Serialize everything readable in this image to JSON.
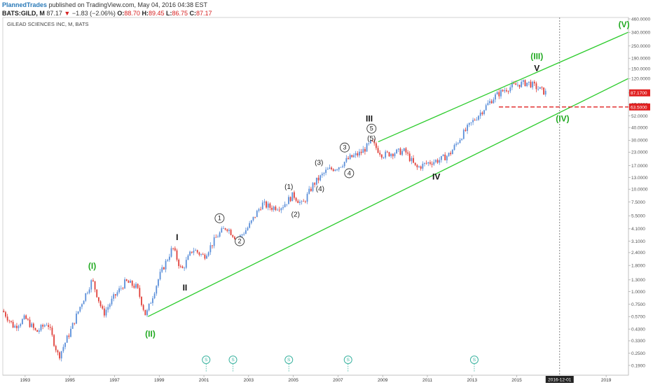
{
  "header": {
    "author": "PlannedTrades",
    "published": "published on TradingView.com, May 04, 2016 04:38 EST",
    "symbol": "BATS:GILD, M",
    "last": "87.17",
    "change": "−1.83 (−2.06%)",
    "o_label": "O:",
    "o_value": "88.70",
    "h_label": "H:",
    "h_value": "89.45",
    "l_label": "L:",
    "l_value": "86.75",
    "c_label": "C:",
    "c_value": "87.17"
  },
  "chart_data": {
    "type": "candlestick",
    "title": "GILEAD SCIENCES INC, M, BATS",
    "y_scale": "log",
    "ylim": [
      0.17,
      460
    ],
    "xlim": [
      1992.0,
      2020.0
    ],
    "y_ticks": [
      "460.0000",
      "340.0000",
      "250.0000",
      "190.0000",
      "150.0000",
      "120.0000",
      "87.0000",
      "67.0000",
      "52.0000",
      "40.0000",
      "30.0000",
      "23.0000",
      "17.0000",
      "13.0000",
      "10.0000",
      "7.5000",
      "5.5000",
      "4.1000",
      "3.1000",
      "2.4000",
      "1.8000",
      "1.3000",
      "1.0000",
      "0.7500",
      "0.5700",
      "0.4300",
      "0.3300",
      "0.2500",
      "0.1900"
    ],
    "x_ticks": [
      "1993",
      "1995",
      "1997",
      "1999",
      "2001",
      "2003",
      "2005",
      "2007",
      "2009",
      "2011",
      "2013",
      "2015",
      "2019"
    ],
    "price_path": [
      [
        1992.0,
        0.65
      ],
      [
        1992.5,
        0.45
      ],
      [
        1993.0,
        0.55
      ],
      [
        1993.5,
        0.4
      ],
      [
        1994.0,
        0.5
      ],
      [
        1994.5,
        0.23
      ],
      [
        1995.0,
        0.4
      ],
      [
        1995.5,
        0.75
      ],
      [
        1996.0,
        1.3
      ],
      [
        1996.5,
        0.6
      ],
      [
        1997.0,
        0.9
      ],
      [
        1997.5,
        1.25
      ],
      [
        1998.0,
        1.1
      ],
      [
        1998.4,
        0.58
      ],
      [
        1999.0,
        1.4
      ],
      [
        1999.6,
        2.7
      ],
      [
        2000.0,
        1.6
      ],
      [
        2000.5,
        2.6
      ],
      [
        2001.0,
        2.2
      ],
      [
        2001.6,
        3.5
      ],
      [
        2002.0,
        4.3
      ],
      [
        2002.5,
        3.2
      ],
      [
        2003.0,
        4.3
      ],
      [
        2003.6,
        7.2
      ],
      [
        2004.0,
        6.6
      ],
      [
        2004.5,
        6.8
      ],
      [
        2005.0,
        8.8
      ],
      [
        2005.4,
        7.0
      ],
      [
        2005.9,
        11.2
      ],
      [
        2006.5,
        15.2
      ],
      [
        2007.0,
        16.5
      ],
      [
        2007.5,
        20.0
      ],
      [
        2008.0,
        22.5
      ],
      [
        2008.5,
        28.5
      ],
      [
        2009.0,
        21.5
      ],
      [
        2009.5,
        22.8
      ],
      [
        2010.0,
        23.5
      ],
      [
        2010.5,
        16.0
      ],
      [
        2011.0,
        18.0
      ],
      [
        2011.6,
        19.5
      ],
      [
        2012.0,
        22.0
      ],
      [
        2012.5,
        32.5
      ],
      [
        2013.0,
        45.0
      ],
      [
        2013.5,
        60.0
      ],
      [
        2014.0,
        80.0
      ],
      [
        2014.5,
        95.0
      ],
      [
        2015.0,
        105.0
      ],
      [
        2015.5,
        110.0
      ],
      [
        2016.3,
        87.17
      ]
    ],
    "channel": {
      "upper": [
        [
          2008.8,
          29.0
        ],
        [
          2019.98,
          340.0
        ]
      ],
      "lower": [
        [
          1998.5,
          0.57
        ],
        [
          2019.98,
          120.0
        ]
      ],
      "color": "#2ecc2e"
    },
    "price_labels": [
      {
        "text": "87.1700",
        "value": 87.17,
        "color": "#e02020"
      },
      {
        "text": "63.5000",
        "value": 63.5,
        "color": "#e02020"
      }
    ],
    "support_level": {
      "value": 63.5,
      "x_start": 2014.2,
      "color": "#e02020"
    },
    "vertical_marker": {
      "x": 2016.92,
      "label": "2016-12-01"
    },
    "wave_labels": [
      {
        "text": "(I)",
        "x": 1996.0,
        "y": 1.75,
        "style": "green"
      },
      {
        "text": "(II)",
        "x": 1998.6,
        "y": 0.38,
        "style": "green"
      },
      {
        "text": "(III)",
        "x": 2015.9,
        "y": 195,
        "style": "green"
      },
      {
        "text": "(IV)",
        "x": 2017.05,
        "y": 48,
        "style": "green"
      },
      {
        "text": "(V)",
        "x": 2019.8,
        "y": 400,
        "style": "green"
      },
      {
        "text": "I",
        "x": 1999.8,
        "y": 3.35,
        "style": "black"
      },
      {
        "text": "II",
        "x": 2000.15,
        "y": 1.08,
        "style": "black"
      },
      {
        "text": "III",
        "x": 2008.4,
        "y": 48,
        "style": "black"
      },
      {
        "text": "IV",
        "x": 2011.4,
        "y": 13.0,
        "style": "black"
      },
      {
        "text": "V",
        "x": 2015.9,
        "y": 150,
        "style": "black"
      },
      {
        "text": "1",
        "x": 2001.7,
        "y": 5.2,
        "style": "circle"
      },
      {
        "text": "2",
        "x": 2002.6,
        "y": 3.1,
        "style": "circle"
      },
      {
        "text": "3",
        "x": 2007.3,
        "y": 25.5,
        "style": "circle"
      },
      {
        "text": "4",
        "x": 2007.5,
        "y": 14.3,
        "style": "circle"
      },
      {
        "text": "5",
        "x": 2008.5,
        "y": 39.0,
        "style": "circle"
      },
      {
        "text": "(1)",
        "x": 2004.8,
        "y": 10.5,
        "style": "plain"
      },
      {
        "text": "(2)",
        "x": 2005.1,
        "y": 5.6,
        "style": "plain"
      },
      {
        "text": "(3)",
        "x": 2006.15,
        "y": 18.0,
        "style": "plain"
      },
      {
        "text": "(4)",
        "x": 2006.2,
        "y": 10.0,
        "style": "plain"
      },
      {
        "text": "(5)",
        "x": 2008.5,
        "y": 31.0,
        "style": "plain"
      }
    ],
    "split_markers": [
      {
        "text": "S",
        "x": 2001.1
      },
      {
        "text": "S",
        "x": 2002.3
      },
      {
        "text": "S",
        "x": 2004.8
      },
      {
        "text": "S",
        "x": 2007.45
      },
      {
        "text": "S",
        "x": 2013.1
      }
    ],
    "colors": {
      "up": "#5b8fd9",
      "down": "#e0403a"
    }
  }
}
